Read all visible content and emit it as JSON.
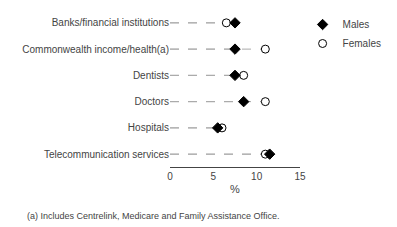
{
  "chart_data": {
    "type": "dot",
    "categories": [
      "Telecommunication services",
      "Hospitals",
      "Doctors",
      "Dentists",
      "Commonwealth income/health(a)",
      "Banks/financial institutions"
    ],
    "series": [
      {
        "name": "Males",
        "color": "black",
        "marker": "diamond",
        "values": [
          11.5,
          5.5,
          8.5,
          7.5,
          7.5,
          7.5
        ]
      },
      {
        "name": "Females",
        "color": "white",
        "marker": "circle",
        "values": [
          11.0,
          6.0,
          11.0,
          8.5,
          11.0,
          6.5
        ]
      }
    ],
    "xlabel": "%",
    "xlim": [
      0,
      15
    ],
    "xticks": [
      0,
      5,
      10,
      15
    ],
    "color": "#aaaaaa",
    "line_style": "dashed",
    "grid": false,
    "legend": "upper right",
    "annotations": [
      "(a) Includes Centrelink, Medicare and Family Assistance Office."
    ]
  }
}
